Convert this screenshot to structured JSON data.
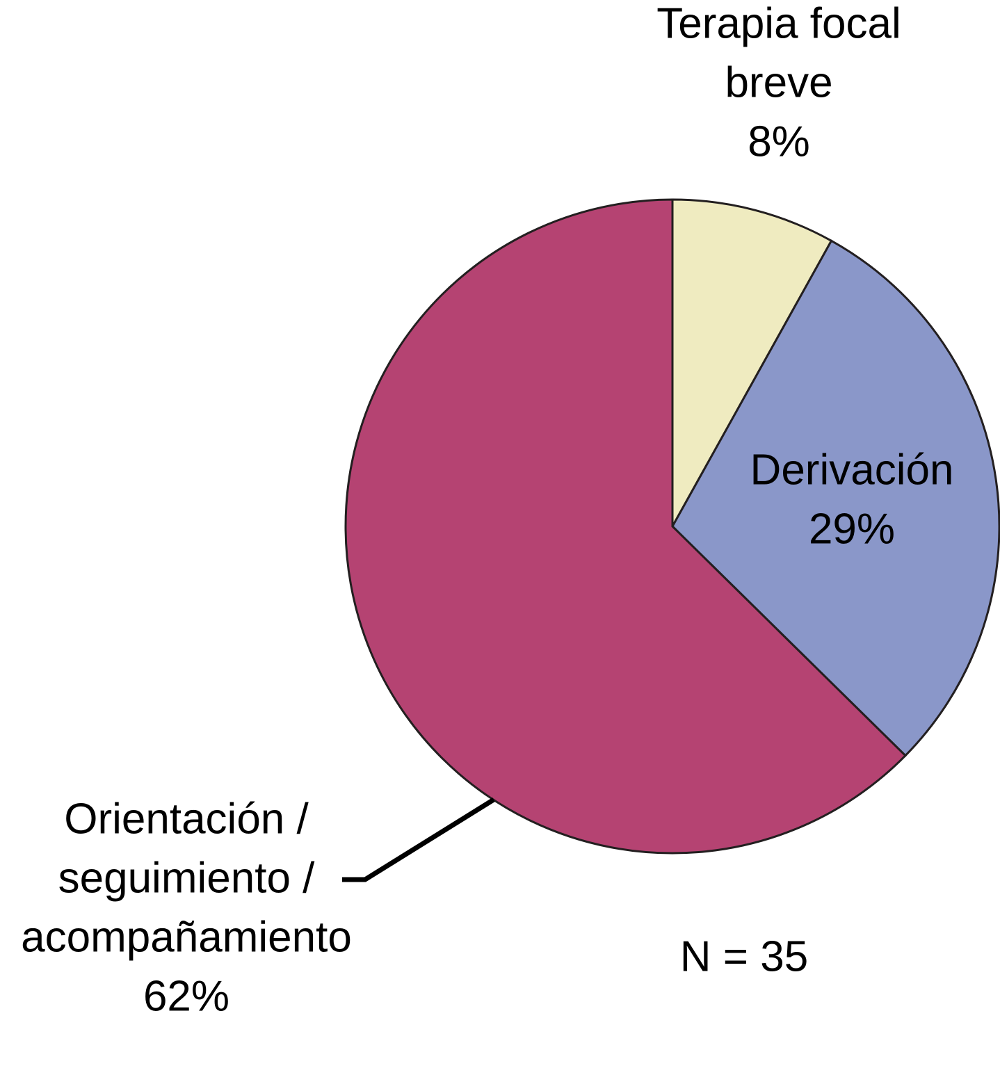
{
  "chart_data": {
    "type": "pie",
    "categories": [
      [
        "Terapia focal",
        "breve"
      ],
      [
        "Derivación"
      ],
      [
        "Orientación /",
        "seguimiento /",
        "acompañamiento"
      ]
    ],
    "values": [
      8,
      29,
      62
    ],
    "value_labels": [
      "8%",
      "29%",
      "62%"
    ],
    "colors": [
      "#efebc0",
      "#8a97c9",
      "#b54372"
    ],
    "annotation": "N = 35"
  }
}
